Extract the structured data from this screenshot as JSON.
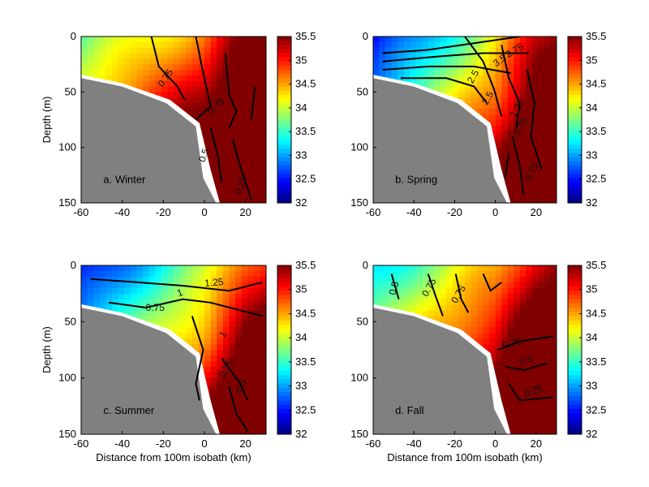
{
  "chart_data": [
    {
      "type": "heatmap",
      "panel_label": "a. Winter",
      "xlim": [
        -60,
        30
      ],
      "ylim": [
        0,
        150
      ],
      "y_reversed": true,
      "xticks": [
        "-60",
        "-40",
        "-20",
        "0",
        "20"
      ],
      "yticks": [
        "0",
        "50",
        "100",
        "150"
      ],
      "ylabel": "Depth (m)",
      "xlabel": "",
      "colorbar": {
        "min": 32,
        "max": 35.5,
        "ticks": [
          "35.5",
          "35",
          "34.5",
          "34",
          "33.5",
          "33",
          "32.5",
          "32"
        ]
      },
      "contour_labels": [
        "0.75",
        "0.75",
        "0.5",
        "0.25"
      ],
      "surface_value": 33.6,
      "slope": 0.018
    },
    {
      "type": "heatmap",
      "panel_label": "b. Spring",
      "xlim": [
        -60,
        30
      ],
      "ylim": [
        0,
        150
      ],
      "y_reversed": true,
      "xticks": [
        "-60",
        "-40",
        "-20",
        "0",
        "20"
      ],
      "yticks": [
        "0",
        "50",
        "100",
        "150"
      ],
      "ylabel": "",
      "xlabel": "",
      "colorbar": {
        "min": 32,
        "max": 35.5,
        "ticks": [
          "35.5",
          "35",
          "34.5",
          "34",
          "33.5",
          "33",
          "32.5",
          "32"
        ]
      },
      "contour_labels": [
        "2.75",
        "3.5",
        "2.5",
        "2.5",
        "0.75",
        "0.75",
        "1.25"
      ],
      "surface_value": 32.3,
      "slope": 0.03
    },
    {
      "type": "heatmap",
      "panel_label": "c. Summer",
      "xlim": [
        -60,
        30
      ],
      "ylim": [
        0,
        150
      ],
      "y_reversed": true,
      "xticks": [
        "-60",
        "-40",
        "-20",
        "0",
        "20"
      ],
      "yticks": [
        "0",
        "50",
        "100",
        "150"
      ],
      "ylabel": "Depth (m)",
      "xlabel": "Distance from 100m isobath (km)",
      "colorbar": {
        "min": 32,
        "max": 35.5,
        "ticks": [
          "35.5",
          "35",
          "34.5",
          "34",
          "33.5",
          "33",
          "32.5",
          "32"
        ]
      },
      "contour_labels": [
        "1.25",
        "1",
        "0.75",
        "1",
        "0.75",
        "0.5"
      ],
      "surface_value": 32.4,
      "slope": 0.024
    },
    {
      "type": "heatmap",
      "panel_label": "d. Fall",
      "xlim": [
        -60,
        30
      ],
      "ylim": [
        0,
        150
      ],
      "y_reversed": true,
      "xticks": [
        "-60",
        "-40",
        "-20",
        "0",
        "20"
      ],
      "yticks": [
        "0",
        "50",
        "100",
        "150"
      ],
      "ylabel": "",
      "xlabel": "Distance from 100m isobath (km)",
      "colorbar": {
        "min": 32,
        "max": 35.5,
        "ticks": [
          "35.5",
          "35",
          "34.5",
          "34",
          "33.5",
          "33",
          "32.5",
          "32"
        ]
      },
      "contour_labels": [
        "0.5",
        "0.75",
        "0.75",
        "0.75",
        "0.5",
        "0.25"
      ],
      "surface_value": 33.2,
      "slope": 0.02
    }
  ]
}
